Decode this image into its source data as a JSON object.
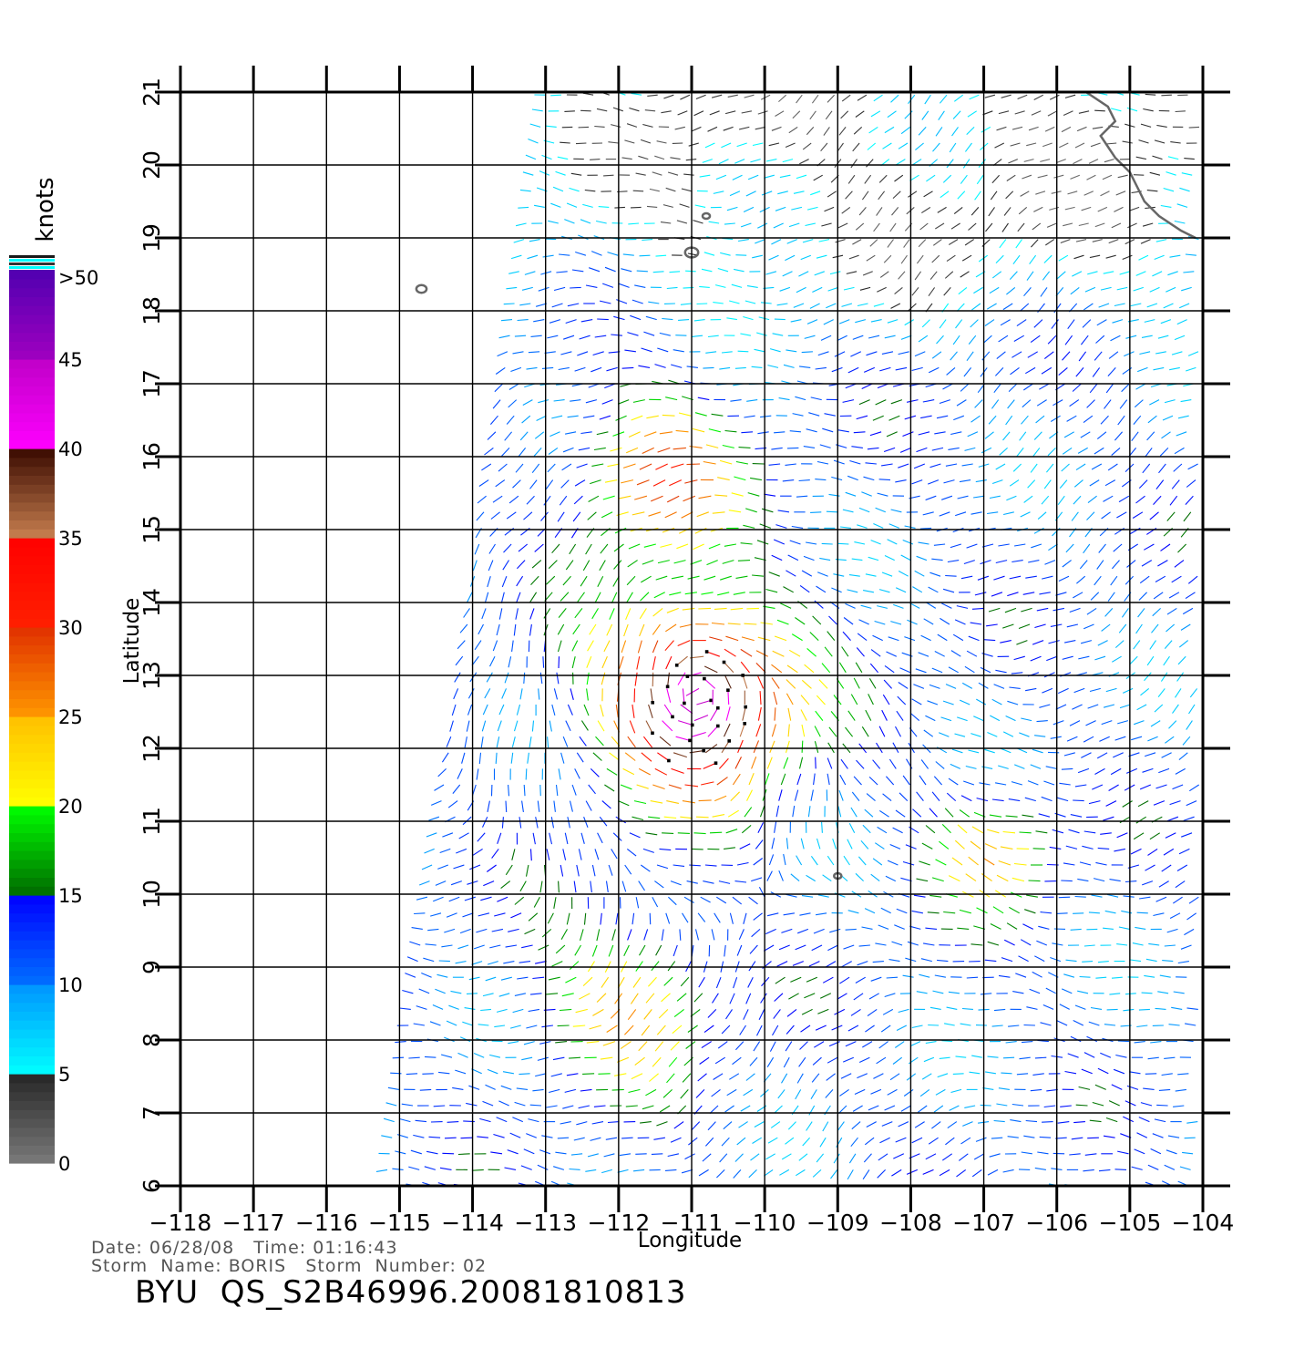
{
  "map": {
    "axes": {
      "xlabel": "Longitude",
      "ylabel": "Latitude",
      "lon_ticks": [
        "−118",
        "−117",
        "−116",
        "−115",
        "−114",
        "−113",
        "−112",
        "−111",
        "−110",
        "−109",
        "−108",
        "−107",
        "−106",
        "−105",
        "−104"
      ],
      "lat_ticks": [
        "6",
        "7",
        "8",
        "9",
        "10",
        "11",
        "12",
        "13",
        "14",
        "15",
        "16",
        "17",
        "18",
        "19",
        "20",
        "21"
      ],
      "lon_range": [
        -118,
        -104
      ],
      "lat_range": [
        6,
        21
      ],
      "grid": true
    },
    "colorbar": {
      "unit": "knots",
      "labels": [
        "0",
        "5",
        "10",
        "15",
        "20",
        "25",
        "30",
        "35",
        "40",
        "45",
        ">50"
      ],
      "bands": [
        {
          "from": 0,
          "to": 5,
          "colors": [
            "#7a7a7a",
            "#262626"
          ]
        },
        {
          "from": 5,
          "to": 10,
          "colors": [
            "#00ffff",
            "#0094ff"
          ]
        },
        {
          "from": 10,
          "to": 15,
          "colors": [
            "#0070ff",
            "#0000ff"
          ]
        },
        {
          "from": 15,
          "to": 20,
          "colors": [
            "#006a00",
            "#00ff00"
          ]
        },
        {
          "from": 20,
          "to": 25,
          "colors": [
            "#ffff00",
            "#ffc000"
          ]
        },
        {
          "from": 25,
          "to": 30,
          "colors": [
            "#ff9800",
            "#e03000"
          ]
        },
        {
          "from": 30,
          "to": 35,
          "colors": [
            "#ff2000",
            "#ff0000"
          ]
        },
        {
          "from": 35,
          "to": 40,
          "colors": [
            "#c88050",
            "#3a0a00"
          ]
        },
        {
          "from": 40,
          "to": 45,
          "colors": [
            "#ff00ff",
            "#c000c8"
          ]
        },
        {
          "from": 45,
          "to": 50,
          "colors": [
            "#a000c0",
            "#5000b0"
          ]
        }
      ]
    },
    "swath": {
      "bottom_lon_range": [
        -115.2,
        -104.1
      ],
      "top_lon_range": [
        -113.0,
        -104.1
      ],
      "lat_range": [
        6,
        21
      ]
    },
    "wind_field_model": {
      "centers": [
        {
          "lon": -110.9,
          "lat": 12.7,
          "peak_kt": 46,
          "radius": 1.3,
          "name": "BORIS"
        },
        {
          "lon": -111.4,
          "lat": 15.8,
          "peak_kt": 30,
          "radius": 1.0
        },
        {
          "lon": -111.8,
          "lat": 8.6,
          "peak_kt": 25,
          "radius": 1.1
        },
        {
          "lon": -106.8,
          "lat": 10.6,
          "peak_kt": 24,
          "radius": 0.8
        }
      ],
      "background_kt": 11
    },
    "land": {
      "coast": [
        [
          -105.6,
          21.0
        ],
        [
          -105.3,
          20.8
        ],
        [
          -105.2,
          20.6
        ],
        [
          -105.4,
          20.4
        ],
        [
          -105.2,
          20.1
        ],
        [
          -105.0,
          19.9
        ],
        [
          -104.8,
          19.5
        ],
        [
          -104.6,
          19.3
        ],
        [
          -104.3,
          19.1
        ],
        [
          -104.1,
          19.0
        ]
      ],
      "islands": [
        {
          "lon": -114.7,
          "lat": 18.3,
          "r": 0.07
        },
        {
          "lon": -111.0,
          "lat": 18.8,
          "r": 0.09
        },
        {
          "lon": -110.8,
          "lat": 19.3,
          "r": 0.05
        },
        {
          "lon": -109.0,
          "lat": 10.25,
          "r": 0.05
        }
      ]
    },
    "info": {
      "line1": "Date: 06/28/08   Time: 01:16:43",
      "line2": "Storm  Name: BORIS   Storm  Number: 02",
      "title": "BYU  QS_S2B46996.20081810813"
    }
  }
}
